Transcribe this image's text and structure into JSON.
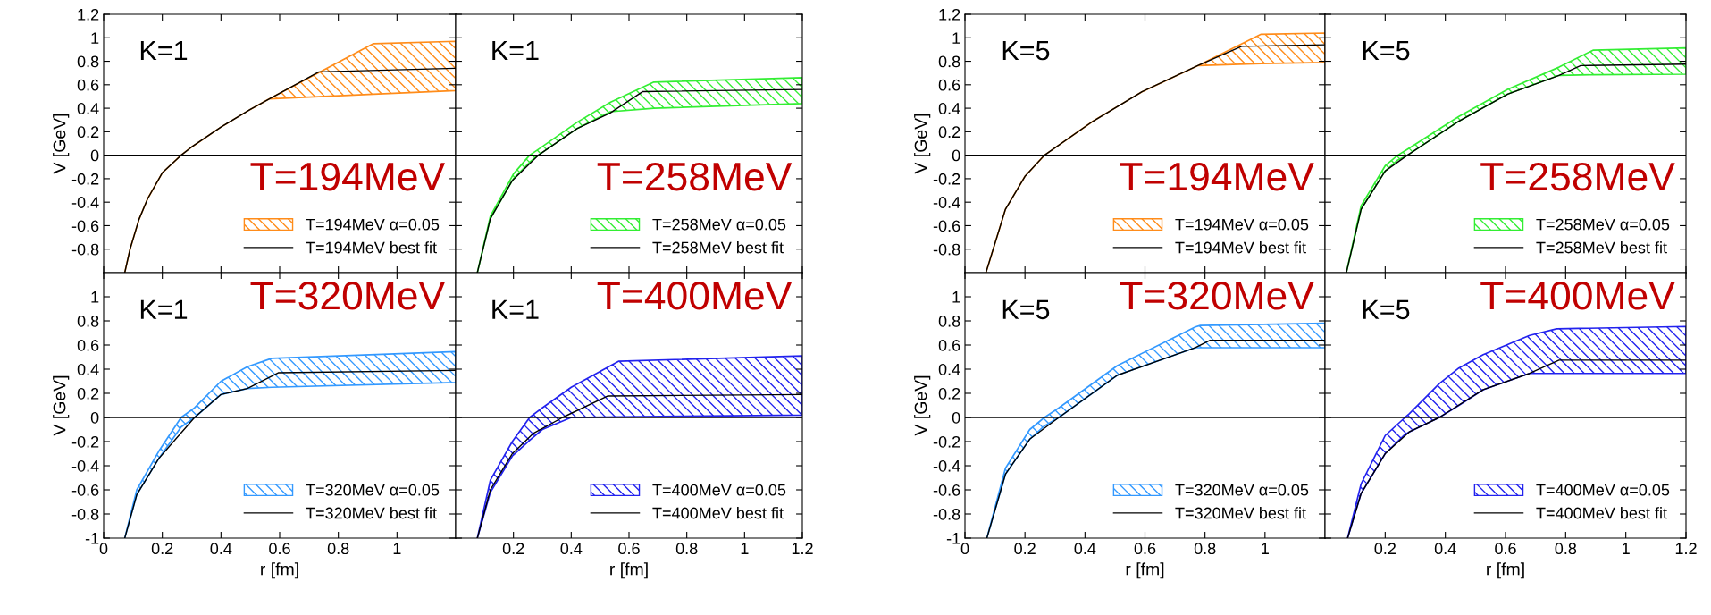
{
  "chart_data": [
    {
      "type": "line",
      "xlabel": null,
      "ylabel": "V [GeV]",
      "annotations": [
        "K=1",
        "T=194MeV"
      ],
      "xlim": [
        0,
        1.2
      ],
      "ylim": [
        -1,
        1.2
      ],
      "yticks": [
        -0.8,
        -0.6,
        -0.4,
        -0.2,
        0,
        0.2,
        0.4,
        0.6,
        0.8,
        1,
        1.2
      ],
      "xticks": [
        0,
        0.2,
        0.4,
        0.6,
        0.8,
        1
      ],
      "tick_labels": "y",
      "legend": "bottom right",
      "ref_lines": [
        {
          "axis": "y",
          "value": 0,
          "color": "#000000"
        }
      ],
      "series": [
        {
          "name": "T=194MeV α=0.05",
          "type": "area",
          "color": "#ff8c1a",
          "values": [
            null,
            null,
            null,
            null,
            null,
            null,
            null,
            null,
            null,
            null,
            null,
            null
          ],
          "x": [
            0.072,
            0.09,
            0.12,
            0.15,
            0.2,
            0.264,
            0.3,
            0.4,
            0.5,
            0.565,
            0.92,
            1.2
          ],
          "lower": [
            -1.0,
            -0.8,
            -0.55,
            -0.37,
            -0.15,
            0,
            0.07,
            0.24,
            0.39,
            0.48,
            0.52,
            0.55
          ],
          "upper": [
            -1.0,
            -0.8,
            -0.55,
            -0.37,
            -0.15,
            0,
            0.07,
            0.24,
            0.39,
            0.48,
            0.95,
            0.97
          ]
        },
        {
          "name": "T=194MeV best fit",
          "type": "line",
          "color": "#000000",
          "x": [
            0.072,
            0.09,
            0.12,
            0.15,
            0.2,
            0.264,
            0.3,
            0.4,
            0.5,
            0.565,
            0.734,
            1.2
          ],
          "values": [
            -1.0,
            -0.8,
            -0.55,
            -0.37,
            -0.15,
            0,
            0.07,
            0.24,
            0.39,
            0.48,
            0.71,
            0.74
          ]
        }
      ]
    },
    {
      "type": "line",
      "annotations": [
        "K=1",
        "T=258MeV"
      ],
      "xlim": [
        0,
        1.2
      ],
      "ylim": [
        -1,
        1.2
      ],
      "yticks": [
        -0.8,
        -0.6,
        -0.4,
        -0.2,
        0,
        0.2,
        0.4,
        0.6,
        0.8,
        1,
        1.2
      ],
      "xticks": [
        0.2,
        0.4,
        0.6,
        0.8,
        1,
        1.2
      ],
      "tick_labels": false,
      "legend": "bottom right",
      "ref_lines": [
        {
          "axis": "y",
          "value": 0,
          "color": "#000000"
        }
      ],
      "series": [
        {
          "name": "T=258MeV α=0.05",
          "type": "area",
          "color": "#33ee33",
          "values": [
            null,
            null,
            null,
            null,
            null,
            null,
            null,
            null,
            null
          ],
          "x": [
            0.075,
            0.12,
            0.2,
            0.256,
            0.286,
            0.42,
            0.535,
            0.686,
            1.2
          ],
          "lower": [
            -1.0,
            -0.54,
            -0.2,
            -0.06,
            0,
            0.227,
            0.37,
            0.4,
            0.44
          ],
          "upper": [
            -1.0,
            -0.52,
            -0.16,
            0,
            0.05,
            0.28,
            0.45,
            0.623,
            0.66
          ]
        },
        {
          "name": "T=258MeV best fit",
          "type": "line",
          "color": "#000000",
          "x": [
            0.075,
            0.12,
            0.196,
            0.286,
            0.42,
            0.535,
            0.648,
            1.2
          ],
          "values": [
            -1.0,
            -0.54,
            -0.215,
            0,
            0.227,
            0.36,
            0.542,
            0.56
          ]
        }
      ]
    },
    {
      "type": "line",
      "ylabel": "V [GeV]",
      "annotations": [
        "K=5",
        "T=194MeV"
      ],
      "xlim": [
        0,
        1.2
      ],
      "ylim": [
        -1,
        1.2
      ],
      "yticks": [
        -0.8,
        -0.6,
        -0.4,
        -0.2,
        0,
        0.2,
        0.4,
        0.6,
        0.8,
        1,
        1.2
      ],
      "xticks": [
        0,
        0.2,
        0.4,
        0.6,
        0.8,
        1
      ],
      "tick_labels": "y",
      "legend": "bottom right",
      "ref_lines": [
        {
          "axis": "y",
          "value": 0,
          "color": "#000000"
        }
      ],
      "series": [
        {
          "name": "T=194MeV α=0.05",
          "type": "area",
          "color": "#ff8c1a",
          "values": [
            null,
            null,
            null,
            null,
            null,
            null,
            null,
            null,
            null
          ],
          "x": [
            0.07,
            0.135,
            0.2,
            0.265,
            0.427,
            0.59,
            0.776,
            0.987,
            1.2
          ],
          "lower": [
            -1.0,
            -0.46,
            -0.18,
            0,
            0.29,
            0.54,
            0.763,
            0.78,
            0.79
          ],
          "upper": [
            -1.0,
            -0.46,
            -0.18,
            0,
            0.29,
            0.54,
            0.763,
            1.03,
            1.04
          ]
        },
        {
          "name": "T=194MeV best fit",
          "type": "line",
          "color": "#000000",
          "x": [
            0.07,
            0.135,
            0.2,
            0.265,
            0.427,
            0.59,
            0.776,
            0.922,
            1.2
          ],
          "values": [
            -1.0,
            -0.46,
            -0.18,
            0,
            0.29,
            0.54,
            0.763,
            0.927,
            0.94
          ]
        }
      ]
    },
    {
      "type": "line",
      "annotations": [
        "K=5",
        "T=258MeV"
      ],
      "xlim": [
        0,
        1.2
      ],
      "ylim": [
        -1,
        1.2
      ],
      "yticks": [
        -0.8,
        -0.6,
        -0.4,
        -0.2,
        0,
        0.2,
        0.4,
        0.6,
        0.8,
        1,
        1.2
      ],
      "xticks": [
        0.2,
        0.4,
        0.6,
        0.8,
        1,
        1.2
      ],
      "tick_labels": false,
      "legend": "bottom right",
      "ref_lines": [
        {
          "axis": "y",
          "value": 0,
          "color": "#000000"
        }
      ],
      "series": [
        {
          "name": "T=258MeV α=0.05",
          "type": "area",
          "color": "#33ee33",
          "values": [
            null,
            null,
            null,
            null,
            null,
            null,
            null,
            null,
            null,
            null
          ],
          "x": [
            0.071,
            0.12,
            0.2,
            0.242,
            0.274,
            0.445,
            0.607,
            0.778,
            0.891,
            1.2
          ],
          "lower": [
            -1.0,
            -0.46,
            -0.135,
            -0.04,
            0,
            0.29,
            0.52,
            0.68,
            0.685,
            0.69
          ],
          "upper": [
            -1.0,
            -0.43,
            -0.09,
            0,
            0.05,
            0.33,
            0.56,
            0.75,
            0.894,
            0.914
          ]
        },
        {
          "name": "T=258MeV best fit",
          "type": "line",
          "color": "#000000",
          "x": [
            0.071,
            0.12,
            0.2,
            0.274,
            0.445,
            0.607,
            0.778,
            0.85,
            1.2
          ],
          "values": [
            -1.0,
            -0.46,
            -0.135,
            0,
            0.29,
            0.52,
            0.68,
            0.763,
            0.776
          ]
        }
      ]
    },
    {
      "type": "line",
      "xlabel": "r [fm]",
      "ylabel": "V [GeV]",
      "annotations": [
        "K=1",
        "T=320MeV"
      ],
      "xlim": [
        0,
        1.2
      ],
      "ylim": [
        -1,
        1.2
      ],
      "yticks": [
        -1,
        -0.8,
        -0.6,
        -0.4,
        -0.2,
        0,
        0.2,
        0.4,
        0.6,
        0.8,
        1
      ],
      "xticks": [
        0,
        0.2,
        0.4,
        0.6,
        0.8,
        1
      ],
      "legend": "bottom right",
      "ref_lines": [
        {
          "axis": "y",
          "value": 0,
          "color": "#000000"
        }
      ],
      "series": [
        {
          "name": "T=320MeV α=0.05",
          "type": "area",
          "color": "#3399ff",
          "values": [
            null,
            null,
            null,
            null,
            null,
            null,
            null,
            null,
            null
          ],
          "x": [
            0.072,
            0.113,
            0.188,
            0.264,
            0.31,
            0.4,
            0.49,
            0.573,
            1.2
          ],
          "lower": [
            -1.0,
            -0.64,
            -0.34,
            -0.08,
            0,
            0.19,
            0.24,
            0.25,
            0.29
          ],
          "upper": [
            -1.0,
            -0.6,
            -0.28,
            0,
            0.08,
            0.3,
            0.42,
            0.49,
            0.545
          ]
        },
        {
          "name": "T=320MeV best fit",
          "type": "line",
          "color": "#000000",
          "x": [
            0.072,
            0.113,
            0.188,
            0.31,
            0.4,
            0.49,
            0.595,
            1.2
          ],
          "values": [
            -1.0,
            -0.64,
            -0.34,
            0,
            0.19,
            0.24,
            0.37,
            0.39
          ]
        }
      ]
    },
    {
      "type": "line",
      "xlabel": "r [fm]",
      "annotations": [
        "K=1",
        "T=400MeV"
      ],
      "xlim": [
        0,
        1.2
      ],
      "ylim": [
        -1,
        1.2
      ],
      "yticks": [
        -1,
        -0.8,
        -0.6,
        -0.4,
        -0.2,
        0,
        0.2,
        0.4,
        0.6,
        0.8,
        1
      ],
      "xticks": [
        0.2,
        0.4,
        0.6,
        0.8,
        1,
        1.2
      ],
      "tick_labels": "x",
      "legend": "bottom right",
      "ref_lines": [
        {
          "axis": "y",
          "value": 0,
          "color": "#000000"
        }
      ],
      "series": [
        {
          "name": "T=400MeV α=0.05",
          "type": "area",
          "color": "#2222ee",
          "values": [
            null,
            null,
            null,
            null,
            null,
            null,
            null,
            null
          ],
          "x": [
            0.075,
            0.12,
            0.196,
            0.256,
            0.3,
            0.4,
            0.565,
            1.2
          ],
          "lower": [
            -1.0,
            -0.62,
            -0.32,
            -0.19,
            -0.1,
            0.0,
            0.005,
            0.02
          ],
          "upper": [
            -1.0,
            -0.52,
            -0.2,
            0,
            0.08,
            0.25,
            0.466,
            0.51
          ]
        },
        {
          "name": "T=400MeV best fit",
          "type": "line",
          "color": "#000000",
          "x": [
            0.075,
            0.12,
            0.196,
            0.27,
            0.37,
            0.527,
            1.2
          ],
          "values": [
            -1.0,
            -0.6,
            -0.3,
            -0.13,
            0,
            0.178,
            0.19
          ]
        }
      ]
    },
    {
      "type": "line",
      "xlabel": "r [fm]",
      "ylabel": "V [GeV]",
      "annotations": [
        "K=5",
        "T=320MeV"
      ],
      "xlim": [
        0,
        1.2
      ],
      "ylim": [
        -1,
        1.2
      ],
      "yticks": [
        -1,
        -0.8,
        -0.6,
        -0.4,
        -0.2,
        0,
        0.2,
        0.4,
        0.6,
        0.8,
        1
      ],
      "xticks": [
        0,
        0.2,
        0.4,
        0.6,
        0.8,
        1
      ],
      "legend": "bottom right",
      "ref_lines": [
        {
          "axis": "y",
          "value": 0,
          "color": "#000000"
        }
      ],
      "series": [
        {
          "name": "T=320MeV α=0.05",
          "type": "area",
          "color": "#3399ff",
          "values": [
            null,
            null,
            null,
            null,
            null,
            null,
            null,
            null,
            null
          ],
          "x": [
            0.073,
            0.135,
            0.216,
            0.265,
            0.313,
            0.508,
            0.768,
            0.784,
            1.2
          ],
          "lower": [
            -1.0,
            -0.47,
            -0.18,
            -0.07,
            0,
            0.35,
            0.578,
            0.578,
            0.578
          ],
          "upper": [
            -1.0,
            -0.42,
            -0.1,
            0,
            0.08,
            0.43,
            0.75,
            0.762,
            0.78
          ]
        },
        {
          "name": "T=320MeV best fit",
          "type": "line",
          "color": "#000000",
          "x": [
            0.073,
            0.135,
            0.216,
            0.313,
            0.508,
            0.768,
            0.817,
            1.2
          ],
          "values": [
            -1.0,
            -0.47,
            -0.18,
            0,
            0.35,
            0.578,
            0.64,
            0.64
          ]
        }
      ]
    },
    {
      "type": "line",
      "xlabel": "r [fm]",
      "annotations": [
        "K=5",
        "T=400MeV"
      ],
      "xlim": [
        0,
        1.2
      ],
      "ylim": [
        -1,
        1.2
      ],
      "yticks": [
        -1,
        -0.8,
        -0.6,
        -0.4,
        -0.2,
        0,
        0.2,
        0.4,
        0.6,
        0.8,
        1
      ],
      "xticks": [
        0.2,
        0.4,
        0.6,
        0.8,
        1,
        1.2
      ],
      "tick_labels": "x",
      "legend": "bottom right",
      "ref_lines": [
        {
          "axis": "y",
          "value": 0,
          "color": "#000000"
        }
      ],
      "series": [
        {
          "name": "T=400MeV α=0.05",
          "type": "area",
          "color": "#2222ee",
          "values": [
            null,
            null,
            null,
            null,
            null,
            null,
            null,
            null,
            null,
            null,
            null
          ],
          "x": [
            0.075,
            0.12,
            0.2,
            0.266,
            0.28,
            0.38,
            0.445,
            0.526,
            0.68,
            0.77,
            1.2
          ],
          "lower": [
            -1.0,
            -0.63,
            -0.3,
            -0.14,
            -0.12,
            0,
            0.1,
            0.23,
            0.365,
            0.365,
            0.365
          ],
          "upper": [
            -1.0,
            -0.55,
            -0.15,
            0,
            0.03,
            0.28,
            0.41,
            0.52,
            0.68,
            0.734,
            0.754
          ]
        },
        {
          "name": "T=400MeV best fit",
          "type": "line",
          "color": "#000000",
          "x": [
            0.075,
            0.12,
            0.2,
            0.28,
            0.38,
            0.526,
            0.68,
            0.778,
            1.2
          ],
          "values": [
            -1.0,
            -0.63,
            -0.3,
            -0.12,
            0,
            0.23,
            0.365,
            0.475,
            0.475
          ]
        }
      ]
    }
  ]
}
